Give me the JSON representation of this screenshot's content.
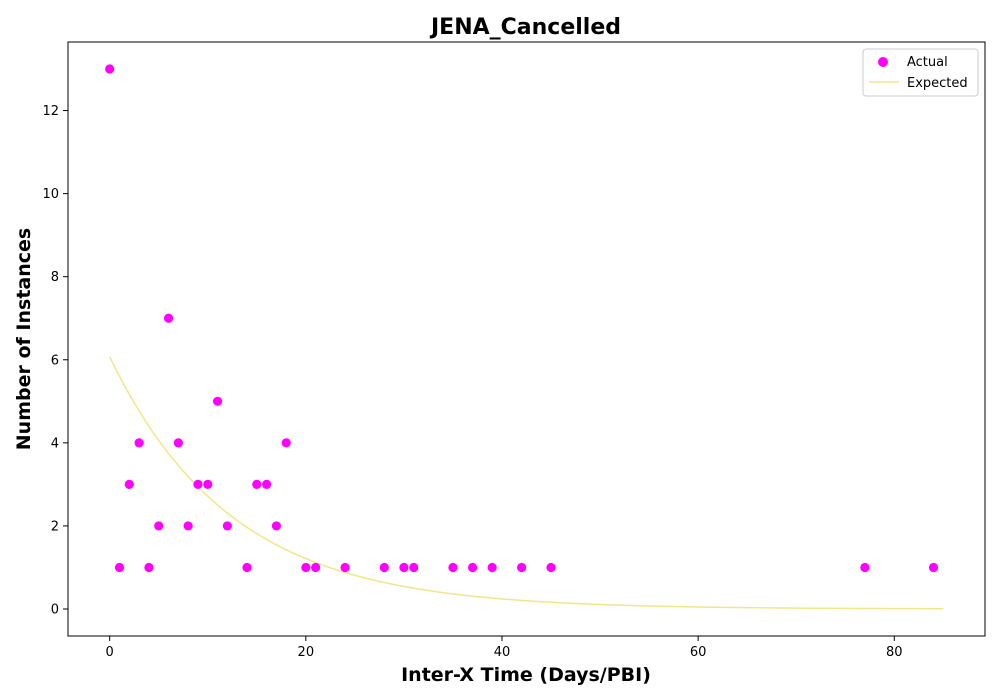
{
  "chart_data": {
    "type": "scatter",
    "title": "JENA_Cancelled",
    "xlabel": "Inter-X Time (Days/PBI)",
    "ylabel": "Number of Instances",
    "xlim": [
      -4.25,
      89.25
    ],
    "ylim": [
      -0.65,
      13.65
    ],
    "xticks": [
      0,
      20,
      40,
      60,
      80
    ],
    "yticks": [
      0,
      2,
      4,
      6,
      8,
      10,
      12
    ],
    "grid": false,
    "legend_position": "top-right",
    "series": [
      {
        "name": "Actual",
        "kind": "scatter",
        "color": "#ff00ff",
        "points": [
          [
            0,
            13
          ],
          [
            1,
            1
          ],
          [
            2,
            3
          ],
          [
            3,
            4
          ],
          [
            4,
            1
          ],
          [
            5,
            2
          ],
          [
            6,
            7
          ],
          [
            7,
            4
          ],
          [
            8,
            2
          ],
          [
            9,
            3
          ],
          [
            10,
            3
          ],
          [
            11,
            5
          ],
          [
            12,
            2
          ],
          [
            14,
            1
          ],
          [
            15,
            3
          ],
          [
            16,
            3
          ],
          [
            17,
            2
          ],
          [
            18,
            4
          ],
          [
            20,
            1
          ],
          [
            21,
            1
          ],
          [
            24,
            1
          ],
          [
            28,
            1
          ],
          [
            30,
            1
          ],
          [
            31,
            1
          ],
          [
            35,
            1
          ],
          [
            37,
            1
          ],
          [
            39,
            1
          ],
          [
            42,
            1
          ],
          [
            45,
            1
          ],
          [
            77,
            1
          ],
          [
            84,
            1
          ]
        ]
      },
      {
        "name": "Expected",
        "kind": "line",
        "color": "#f0e68c",
        "function": "exponential",
        "amplitude": 6.07,
        "rate": 0.0805,
        "x_range": [
          0,
          85
        ]
      }
    ]
  }
}
